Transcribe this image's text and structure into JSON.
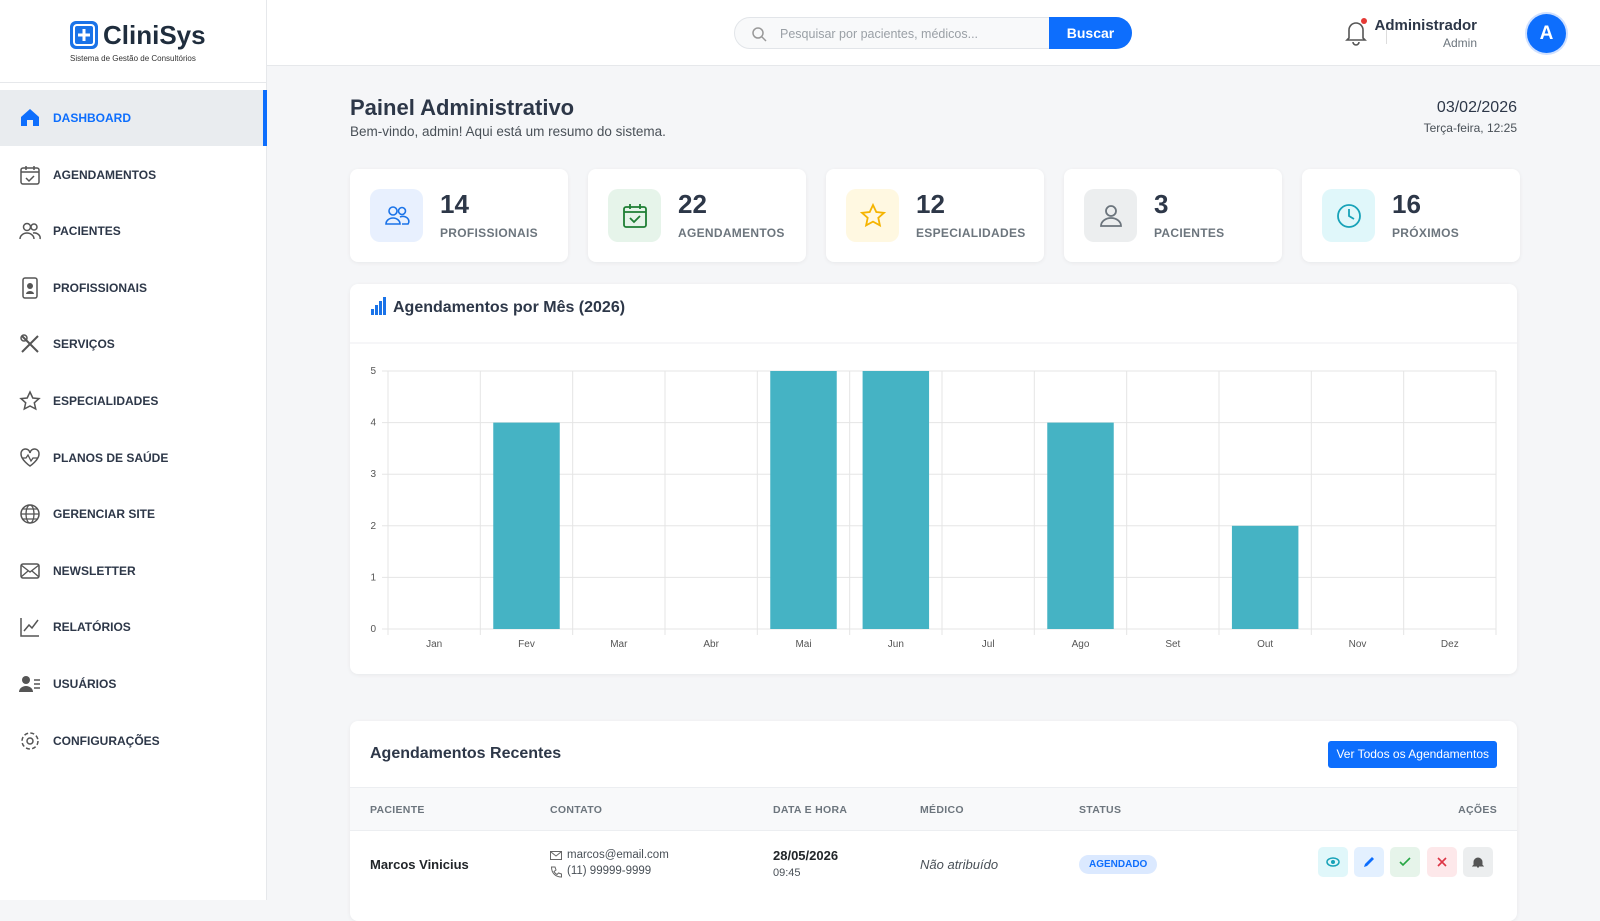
{
  "brand": {
    "name": "CliniSys",
    "tagline": "Sistema de Gestão de Consultórios"
  },
  "nav": [
    "DASHBOARD",
    "AGENDAMENTOS",
    "PACIENTES",
    "PROFISSIONAIS",
    "SERVIÇOS",
    "ESPECIALIDADES",
    "PLANOS DE SAÚDE",
    "GERENCIAR SITE",
    "NEWSLETTER",
    "RELATÓRIOS",
    "USUÁRIOS",
    "CONFIGURAÇÕES"
  ],
  "search": {
    "placeholder": "Pesquisar por pacientes, médicos...",
    "button": "Buscar"
  },
  "user": {
    "name": "Administrador",
    "role": "Admin",
    "initial": "A"
  },
  "header": {
    "title": "Painel Administrativo",
    "subtitle": "Bem-vindo, admin! Aqui está um resumo do sistema.",
    "date": "03/02/2026",
    "weekday_time": "Terça-feira, 12:25"
  },
  "stats": [
    {
      "value": 14,
      "label": "PROFISSIONAIS"
    },
    {
      "value": 22,
      "label": "AGENDAMENTOS"
    },
    {
      "value": 12,
      "label": "ESPECIALIDADES"
    },
    {
      "value": 3,
      "label": "PACIENTES"
    },
    {
      "value": 16,
      "label": "PRÓXIMOS"
    }
  ],
  "chart": {
    "type": "bar",
    "title": "Agendamentos por Mês (2026)",
    "categories": [
      "Jan",
      "Fev",
      "Mar",
      "Abr",
      "Mai",
      "Jun",
      "Jul",
      "Ago",
      "Set",
      "Out",
      "Nov",
      "Dez"
    ],
    "values": [
      0,
      4,
      0,
      0,
      5,
      5,
      0,
      4,
      0,
      2,
      0,
      0
    ],
    "ylim": [
      0,
      5
    ],
    "yticks": [
      0,
      1,
      2,
      3,
      4,
      5
    ],
    "color": "#45b3c4",
    "grid": true
  },
  "table": {
    "title": "Agendamentos Recentes",
    "button": "Ver Todos os Agendamentos",
    "columns": [
      "PACIENTE",
      "CONTATO",
      "DATA E HORA",
      "MÉDICO",
      "STATUS",
      "AÇÕES"
    ],
    "rows": [
      {
        "patient": "Marcos Vinicius",
        "email": "marcos@email.com",
        "phone": "(11) 99999-9999",
        "date": "28/05/2026",
        "time": "09:45",
        "doctor": "Não atribuído",
        "status": "AGENDADO"
      }
    ]
  }
}
